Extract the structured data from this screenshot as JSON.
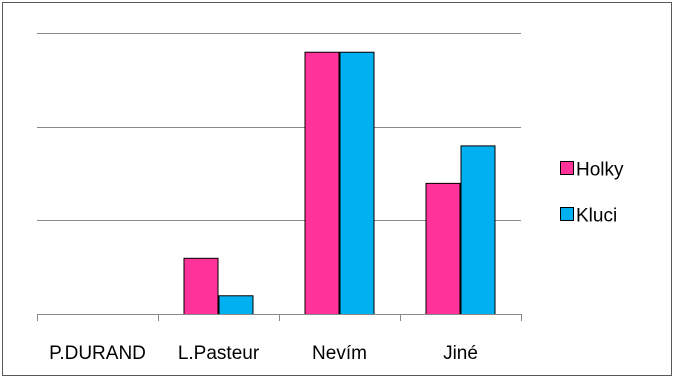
{
  "chart_data": {
    "type": "bar",
    "categories": [
      "P.DURAND",
      "L.Pasteur",
      "Nevím",
      "Jiné"
    ],
    "series": [
      {
        "name": "Holky",
        "values": [
          0,
          3,
          14,
          7
        ],
        "color": "#FF3399"
      },
      {
        "name": "Kluci",
        "values": [
          0,
          1,
          14,
          9
        ],
        "color": "#00B0F0"
      }
    ],
    "ylim": [
      0,
      15
    ],
    "y_gridlines": [
      5,
      10,
      15
    ],
    "grid": true,
    "y_axis_labels_visible": false,
    "legend": {
      "position": "right"
    },
    "bar_outline_color": "#000000",
    "gridline_color": "#898989"
  }
}
